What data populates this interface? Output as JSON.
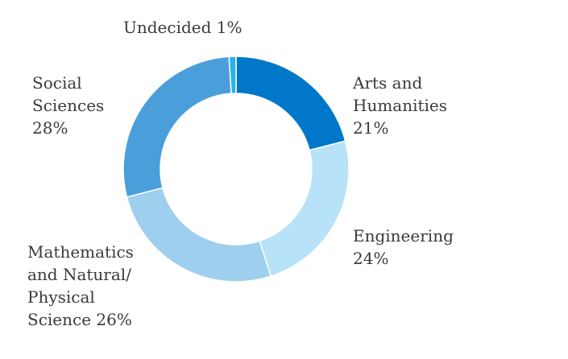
{
  "chart_data": {
    "type": "pie",
    "variant": "donut",
    "legend": "none",
    "slices": [
      {
        "name": "Arts and Humanities",
        "value": 21,
        "color": "#0077C8",
        "label_lines": [
          "Arts and",
          "Humanities",
          "21%"
        ]
      },
      {
        "name": "Engineering",
        "value": 24,
        "color": "#B8E2F8",
        "label_lines": [
          "Engineering",
          "24%"
        ]
      },
      {
        "name": "Mathematics and Natural/ Physical Science",
        "value": 26,
        "color": "#9ECFEE",
        "label_lines": [
          "Mathematics",
          "and Natural/",
          "Physical",
          "Science 26%"
        ]
      },
      {
        "name": "Social Sciences",
        "value": 28,
        "color": "#4A9FDB",
        "label_lines": [
          "Social",
          "Sciences",
          "28%"
        ]
      },
      {
        "name": "Undecided",
        "value": 1,
        "color": "#29B3E8",
        "label_lines": [
          "Undecided 1%"
        ]
      }
    ]
  }
}
